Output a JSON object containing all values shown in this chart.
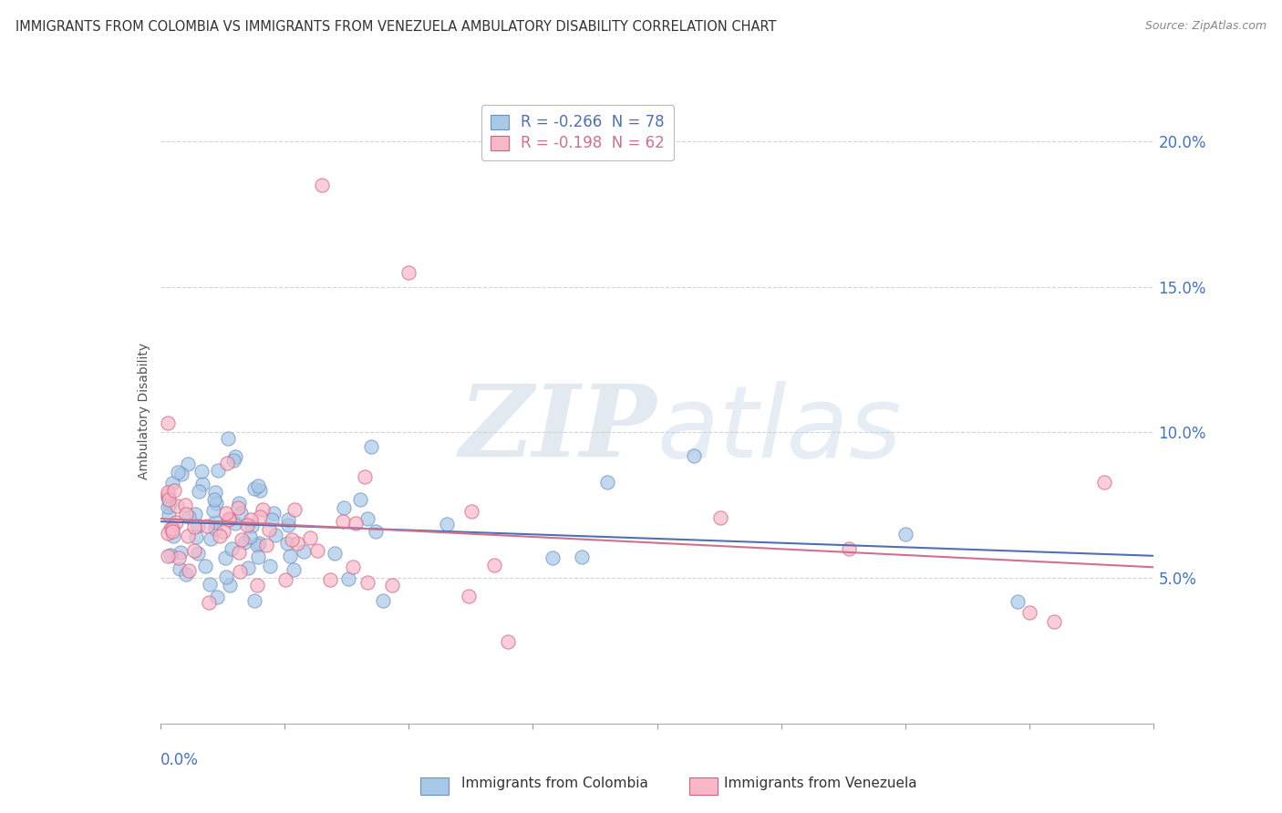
{
  "title": "IMMIGRANTS FROM COLOMBIA VS IMMIGRANTS FROM VENEZUELA AMBULATORY DISABILITY CORRELATION CHART",
  "source": "Source: ZipAtlas.com",
  "ylabel": "Ambulatory Disability",
  "legend_colombia": "R = -0.266  N = 78",
  "legend_venezuela": "R = -0.198  N = 62",
  "color_colombia": "#a8c8e8",
  "color_venezuela": "#f8b8c8",
  "edge_colombia": "#7090c0",
  "edge_venezuela": "#d06080",
  "trendline_colombia": "#5070b0",
  "trendline_venezuela": "#d07090",
  "xlim": [
    0.0,
    0.4
  ],
  "ylim": [
    0.0,
    0.215
  ],
  "yticks": [
    0.05,
    0.1,
    0.15,
    0.2
  ],
  "ytick_labels": [
    "5.0%",
    "10.0%",
    "15.0%",
    "20.0%"
  ],
  "ytick_color": "#4472c4",
  "background": "#ffffff",
  "grid_color": "#d0d0d0",
  "watermark_color": "#d8e0ec",
  "title_color": "#333333",
  "source_color": "#888888",
  "xlabel_color": "#4472c4"
}
